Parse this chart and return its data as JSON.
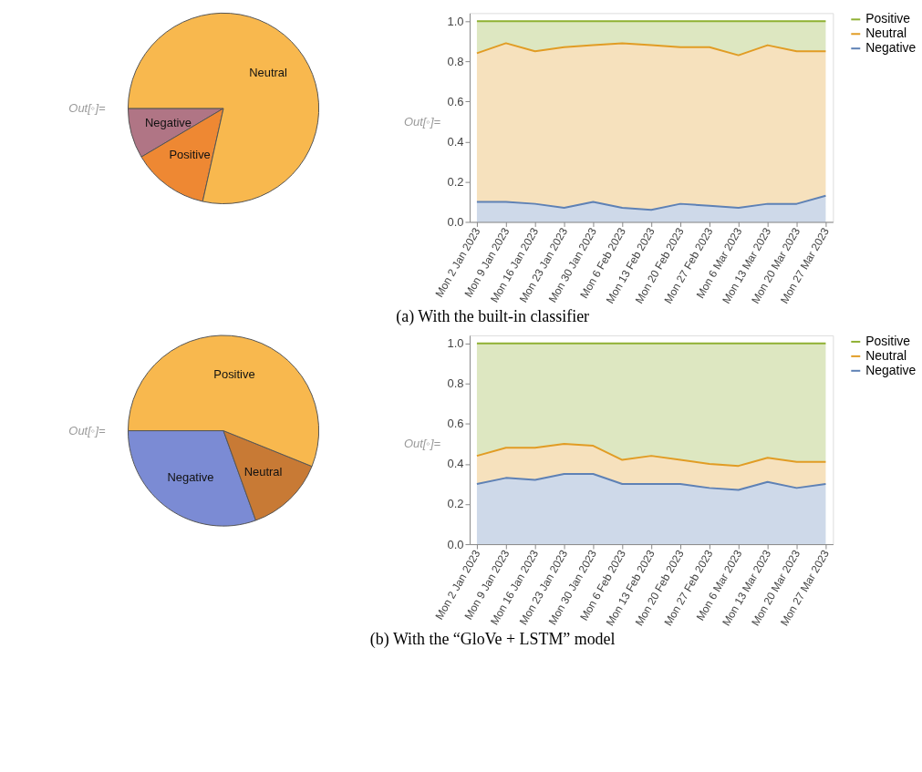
{
  "chart_data": [
    {
      "type": "pie",
      "categories": [
        "Negative",
        "Positive",
        "Neutral"
      ],
      "values": [
        8.5,
        13,
        78.5
      ],
      "colors": [
        "#b07585",
        "#ee8833",
        "#f8b84e"
      ],
      "annotations": [
        "Out[◦]="
      ]
    },
    {
      "type": "area",
      "stacked": true,
      "categories": [
        "Mon 2 Jan 2023",
        "Mon 9 Jan 2023",
        "Mon 16 Jan 2023",
        "Mon 23 Jan 2023",
        "Mon 30 Jan 2023",
        "Mon 6 Feb 2023",
        "Mon 13 Feb 2023",
        "Mon 20 Feb 2023",
        "Mon 27 Feb 2023",
        "Mon 6 Mar 2023",
        "Mon 13 Mar 2023",
        "Mon 20 Mar 2023",
        "Mon 27 Mar 2023"
      ],
      "series": [
        {
          "name": "Negative",
          "color": "#5e81b5",
          "values": [
            0.1,
            0.1,
            0.09,
            0.07,
            0.1,
            0.07,
            0.06,
            0.09,
            0.08,
            0.07,
            0.09,
            0.09,
            0.13
          ]
        },
        {
          "name": "Neutral",
          "color": "#e19c24",
          "values": [
            0.74,
            0.79,
            0.76,
            0.8,
            0.78,
            0.82,
            0.82,
            0.78,
            0.79,
            0.76,
            0.79,
            0.76,
            0.72
          ]
        },
        {
          "name": "Positive",
          "color": "#8fb032",
          "values": [
            0.16,
            0.11,
            0.15,
            0.13,
            0.12,
            0.11,
            0.12,
            0.13,
            0.13,
            0.17,
            0.12,
            0.15,
            0.15
          ]
        }
      ],
      "ylim": [
        0,
        1.04
      ],
      "yticks": [
        {
          "value": 0,
          "label": "0.0"
        },
        {
          "value": 0.2,
          "label": "0.2"
        },
        {
          "value": 0.4,
          "label": "0.4"
        },
        {
          "value": 0.6,
          "label": "0.6"
        },
        {
          "value": 0.8,
          "label": "0.8"
        },
        {
          "value": 1,
          "label": "1.0"
        }
      ],
      "legend": "right",
      "grid": false,
      "annotations": [
        "Out[◦]=",
        "(a) With the built-in classifier"
      ]
    },
    {
      "type": "pie",
      "categories": [
        "Negative",
        "Neutral",
        "Positive"
      ],
      "values": [
        30.5,
        13.4,
        56.1
      ],
      "colors": [
        "#7b8bd4",
        "#c87a35",
        "#f8b84e"
      ],
      "annotations": [
        "Out[◦]="
      ]
    },
    {
      "type": "area",
      "stacked": true,
      "categories": [
        "Mon 2 Jan 2023",
        "Mon 9 Jan 2023",
        "Mon 16 Jan 2023",
        "Mon 23 Jan 2023",
        "Mon 30 Jan 2023",
        "Mon 6 Feb 2023",
        "Mon 13 Feb 2023",
        "Mon 20 Feb 2023",
        "Mon 27 Feb 2023",
        "Mon 6 Mar 2023",
        "Mon 13 Mar 2023",
        "Mon 20 Mar 2023",
        "Mon 27 Mar 2023"
      ],
      "series": [
        {
          "name": "Negative",
          "color": "#5e81b5",
          "values": [
            0.3,
            0.33,
            0.32,
            0.35,
            0.35,
            0.3,
            0.3,
            0.3,
            0.28,
            0.27,
            0.31,
            0.28,
            0.3
          ]
        },
        {
          "name": "Neutral",
          "color": "#e19c24",
          "values": [
            0.14,
            0.15,
            0.16,
            0.15,
            0.14,
            0.12,
            0.14,
            0.12,
            0.12,
            0.12,
            0.12,
            0.13,
            0.11
          ]
        },
        {
          "name": "Positive",
          "color": "#8fb032",
          "values": [
            0.56,
            0.52,
            0.52,
            0.5,
            0.51,
            0.58,
            0.56,
            0.58,
            0.6,
            0.61,
            0.57,
            0.59,
            0.59
          ]
        }
      ],
      "ylim": [
        0,
        1.04
      ],
      "yticks": [
        {
          "value": 0,
          "label": "0.0"
        },
        {
          "value": 0.2,
          "label": "0.2"
        },
        {
          "value": 0.4,
          "label": "0.4"
        },
        {
          "value": 0.6,
          "label": "0.6"
        },
        {
          "value": 0.8,
          "label": "0.8"
        },
        {
          "value": 1,
          "label": "1.0"
        }
      ],
      "legend": "right",
      "grid": false,
      "annotations": [
        "Out[◦]=",
        "(b) With the “GloVe + LSTM” model"
      ]
    }
  ]
}
